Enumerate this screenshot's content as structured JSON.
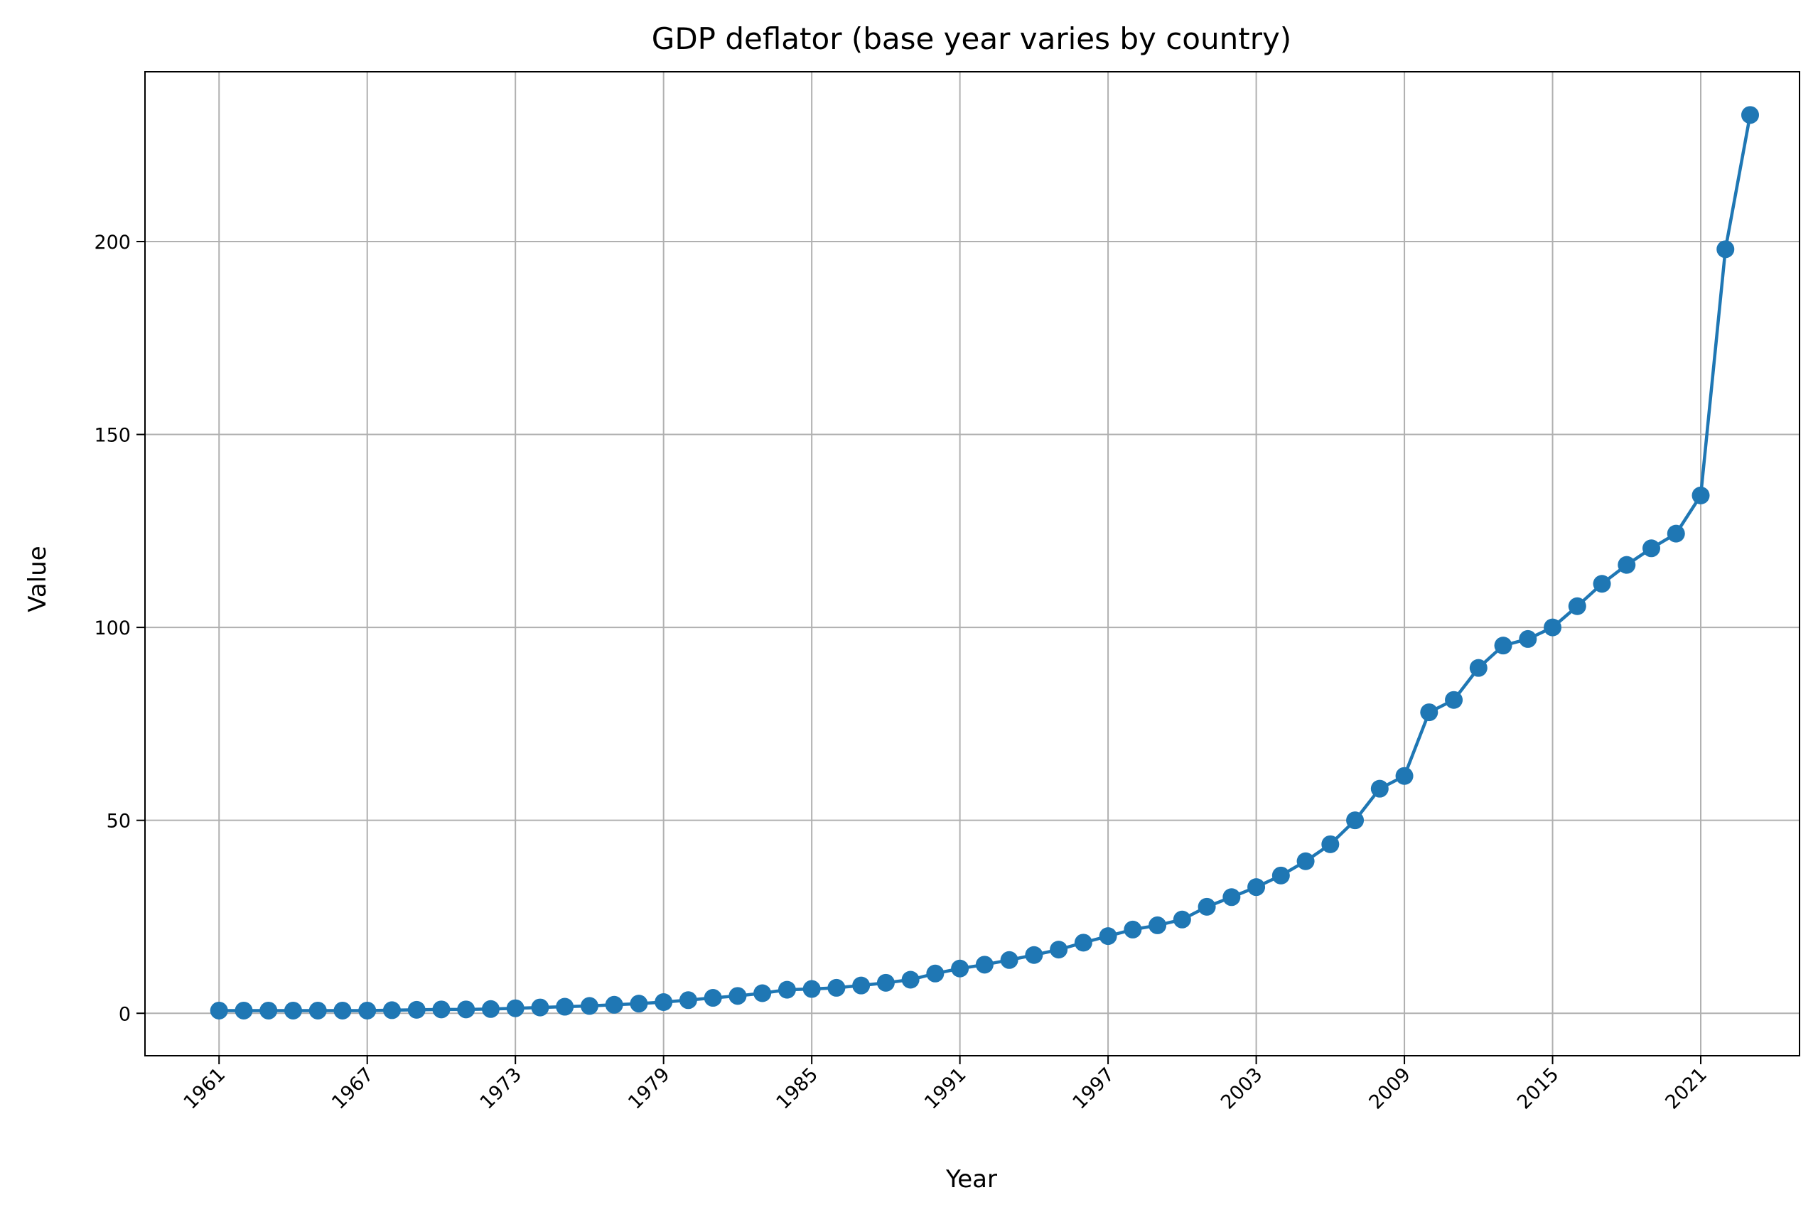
{
  "chart_data": {
    "type": "line",
    "title": "GDP deflator (base year varies by country)",
    "xlabel": "Year",
    "ylabel": "Value",
    "xlim": [
      1958,
      2025
    ],
    "ylim": [
      -11,
      244
    ],
    "x_ticks": [
      1961,
      1967,
      1973,
      1979,
      1985,
      1991,
      1997,
      2003,
      2009,
      2015,
      2021
    ],
    "y_ticks": [
      0,
      50,
      100,
      150,
      200
    ],
    "grid": true,
    "marker": "circle",
    "colors": {
      "series": "#1f77b4",
      "grid": "#b0b0b0"
    },
    "series": [
      {
        "x": [
          1961,
          1962,
          1963,
          1964,
          1965,
          1966,
          1967,
          1968,
          1969,
          1970,
          1971,
          1972,
          1973,
          1974,
          1975,
          1976,
          1977,
          1978,
          1979,
          1980,
          1981,
          1982,
          1983,
          1984,
          1985,
          1986,
          1987,
          1988,
          1989,
          1990,
          1991,
          1992,
          1993,
          1994,
          1995,
          1996,
          1997,
          1998,
          1999,
          2000,
          2001,
          2002,
          2003,
          2004,
          2005,
          2006,
          2007,
          2008,
          2009,
          2010,
          2011,
          2012,
          2013,
          2014,
          2015,
          2016,
          2017,
          2018,
          2019,
          2020,
          2021,
          2022,
          2023
        ],
        "values": [
          0.7,
          0.7,
          0.7,
          0.7,
          0.7,
          0.7,
          0.7,
          0.8,
          0.9,
          1.0,
          1.0,
          1.1,
          1.3,
          1.5,
          1.7,
          1.9,
          2.2,
          2.5,
          2.9,
          3.4,
          4.0,
          4.5,
          5.2,
          6.1,
          6.3,
          6.6,
          7.2,
          7.9,
          8.7,
          10.3,
          11.6,
          12.6,
          13.8,
          15.1,
          16.5,
          18.3,
          20.0,
          21.7,
          22.8,
          24.3,
          27.6,
          30.1,
          32.7,
          35.7,
          39.4,
          43.8,
          50.0,
          58.2,
          61.5,
          78.0,
          81.2,
          89.5,
          95.3,
          97.0,
          100.0,
          105.5,
          111.3,
          116.2,
          120.5,
          124.3,
          134.2,
          198.0,
          232.8
        ]
      }
    ]
  }
}
